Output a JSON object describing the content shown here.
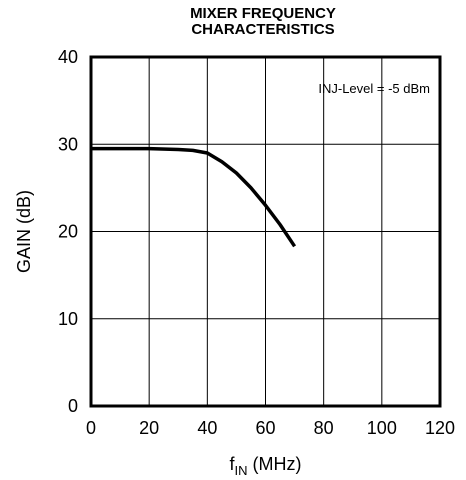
{
  "chart_data": {
    "type": "line",
    "title_lines": [
      "MIXER FREQUENCY",
      "CHARACTERISTICS"
    ],
    "xlabel_main": "f",
    "xlabel_sub": "IN",
    "xlabel_unit": " (MHz)",
    "ylabel": "GAIN (dB)",
    "xlim": [
      0,
      120
    ],
    "ylim": [
      0,
      40
    ],
    "x_ticks": [
      0,
      20,
      40,
      60,
      80,
      100,
      120
    ],
    "y_ticks": [
      0,
      10,
      20,
      30,
      40
    ],
    "grid": true,
    "annotation": "INJ-Level = -5 dBm",
    "series": [
      {
        "x": [
          0,
          10,
          20,
          30,
          35,
          40,
          45,
          50,
          55,
          60,
          65,
          70
        ],
        "y": [
          29.5,
          29.5,
          29.5,
          29.4,
          29.3,
          29.0,
          28.0,
          26.7,
          25.0,
          23.0,
          20.8,
          18.3
        ]
      }
    ]
  }
}
